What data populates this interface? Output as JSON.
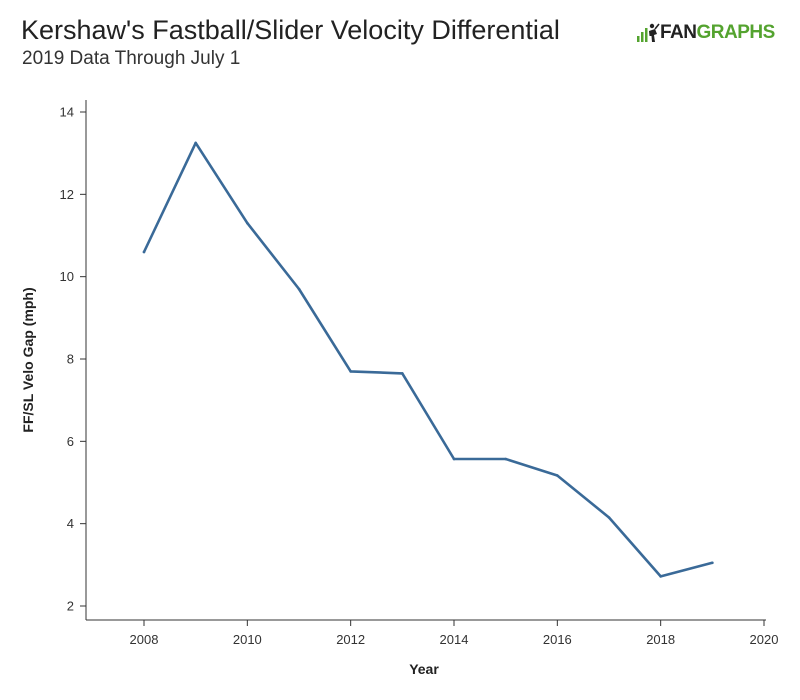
{
  "header": {
    "title": "Kershaw's Fastball/Slider Velocity Differential",
    "subtitle": "2019 Data Through July 1"
  },
  "logo": {
    "text_dark": "FAN",
    "text_green": "GRAPHS",
    "icon": "fangraphs-logo-icon",
    "brand_color": "#54a32f"
  },
  "colors": {
    "line": "#3a6a98",
    "axis": "#333333"
  },
  "chart_data": {
    "type": "line",
    "title": "Kershaw's Fastball/Slider Velocity Differential",
    "subtitle": "2019 Data Through July 1",
    "xlabel": "Year",
    "ylabel": "FF/SL Velo Gap (mph)",
    "xlim": [
      2007,
      2020
    ],
    "ylim": [
      1.8,
      14.2
    ],
    "xticks": [
      2008,
      2010,
      2012,
      2014,
      2016,
      2018,
      2020
    ],
    "yticks": [
      2,
      4,
      6,
      8,
      10,
      12,
      14
    ],
    "grid": false,
    "legend": "none",
    "series": [
      {
        "x": [
          2008,
          2009,
          2010,
          2011,
          2012,
          2013,
          2014,
          2015,
          2016,
          2017,
          2018,
          2019
        ],
        "values": [
          10.6,
          13.25,
          11.3,
          9.7,
          7.7,
          7.65,
          5.57,
          5.57,
          5.17,
          4.15,
          2.72,
          3.05
        ]
      }
    ]
  }
}
